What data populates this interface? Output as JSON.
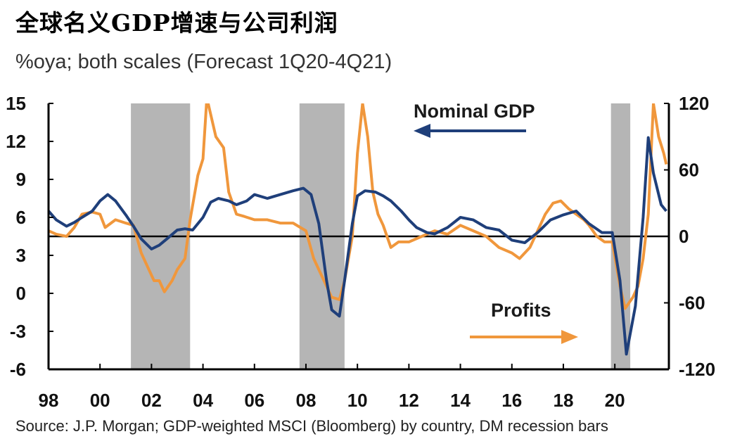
{
  "title": "全球名义GDP增速与公司利润",
  "subtitle": "%oya; both scales (Forecast 1Q20-4Q21)",
  "source": "Source: J.P. Morgan; GDP-weighted MSCI (Bloomberg) by country, DM recession bars",
  "colors": {
    "gdp": "#1f3f7a",
    "profits": "#f0973c",
    "recession": "#b5b5b5",
    "axis": "#000000"
  },
  "chart_data": {
    "type": "line",
    "x_range": [
      1998.0,
      2022.1
    ],
    "x_ticks": [
      {
        "value": 1998,
        "label": "98"
      },
      {
        "value": 2000,
        "label": "00"
      },
      {
        "value": 2002,
        "label": "02"
      },
      {
        "value": 2004,
        "label": "04"
      },
      {
        "value": 2006,
        "label": "06"
      },
      {
        "value": 2008,
        "label": "08"
      },
      {
        "value": 2010,
        "label": "10"
      },
      {
        "value": 2012,
        "label": "12"
      },
      {
        "value": 2014,
        "label": "14"
      },
      {
        "value": 2016,
        "label": "16"
      },
      {
        "value": 2018,
        "label": "18"
      },
      {
        "value": 2020,
        "label": "20"
      }
    ],
    "left_axis": {
      "name": "Nominal GDP",
      "range": [
        -6,
        15
      ],
      "ticks": [
        {
          "value": 15,
          "label": "15"
        },
        {
          "value": 12,
          "label": "12"
        },
        {
          "value": 9,
          "label": "9"
        },
        {
          "value": 6,
          "label": "6"
        },
        {
          "value": 3,
          "label": "3"
        },
        {
          "value": 0,
          "label": "0"
        },
        {
          "value": -3,
          "label": "-3"
        },
        {
          "value": -6,
          "label": "-6"
        }
      ]
    },
    "right_axis": {
      "name": "Profits",
      "range": [
        -120,
        120
      ],
      "ticks": [
        {
          "value": 120,
          "label": "120"
        },
        {
          "value": 60,
          "label": "60"
        },
        {
          "value": 0,
          "label": "0"
        },
        {
          "value": -60,
          "label": "-60"
        },
        {
          "value": -120,
          "label": "-120"
        }
      ]
    },
    "zero_line": {
      "right_value": 0
    },
    "recession_bars": [
      [
        2001.2,
        2003.5
      ],
      [
        2007.75,
        2009.5
      ],
      [
        2019.85,
        2020.6
      ]
    ],
    "annotations": [
      {
        "text": "Nominal GDP",
        "arrow": "left",
        "series": "gdp"
      },
      {
        "text": "Profits",
        "arrow": "right",
        "series": "profits"
      }
    ],
    "series": [
      {
        "name": "Nominal GDP",
        "axis": "left",
        "x": [
          1998.0,
          1998.3,
          1998.7,
          1999.0,
          1999.3,
          1999.7,
          2000.0,
          2000.3,
          2000.6,
          2001.0,
          2001.3,
          2001.6,
          2002.0,
          2002.3,
          2002.6,
          2003.0,
          2003.3,
          2003.6,
          2004.0,
          2004.3,
          2004.6,
          2005.0,
          2005.3,
          2005.7,
          2006.0,
          2006.5,
          2007.0,
          2007.5,
          2007.9,
          2008.2,
          2008.5,
          2008.8,
          2009.0,
          2009.3,
          2009.5,
          2009.8,
          2010.0,
          2010.3,
          2010.7,
          2011.0,
          2011.3,
          2011.7,
          2012.0,
          2012.3,
          2012.7,
          2013.0,
          2013.5,
          2014.0,
          2014.5,
          2015.0,
          2015.5,
          2016.0,
          2016.5,
          2017.0,
          2017.5,
          2018.0,
          2018.5,
          2019.0,
          2019.5,
          2019.9,
          2020.2,
          2020.45,
          2020.8,
          2021.1,
          2021.3,
          2021.5,
          2021.8,
          2022.0
        ],
        "values": [
          6.5,
          5.8,
          5.3,
          5.6,
          6.0,
          6.5,
          7.3,
          7.8,
          7.3,
          6.2,
          5.3,
          4.3,
          3.5,
          3.8,
          4.3,
          5.0,
          5.1,
          5.0,
          6.0,
          7.2,
          7.5,
          7.3,
          7.0,
          7.3,
          7.8,
          7.5,
          7.8,
          8.1,
          8.3,
          7.8,
          5.5,
          1.0,
          -1.3,
          -1.8,
          1.0,
          5.5,
          7.7,
          8.1,
          8.0,
          7.7,
          7.3,
          6.5,
          5.8,
          5.2,
          4.8,
          4.7,
          5.2,
          6.0,
          5.8,
          5.2,
          5.0,
          4.2,
          4.0,
          4.8,
          5.8,
          6.2,
          6.5,
          5.5,
          4.8,
          4.8,
          1.0,
          -4.8,
          -1.0,
          6.0,
          12.3,
          9.5,
          7.0,
          6.5
        ]
      },
      {
        "name": "Profits",
        "axis": "right",
        "x": [
          1998.0,
          1998.3,
          1998.7,
          1999.0,
          1999.3,
          1999.7,
          2000.0,
          2000.2,
          2000.6,
          2001.0,
          2001.3,
          2001.6,
          2001.9,
          2002.1,
          2002.3,
          2002.5,
          2002.8,
          2003.0,
          2003.3,
          2003.5,
          2003.8,
          2004.0,
          2004.15,
          2004.3,
          2004.5,
          2004.8,
          2005.0,
          2005.3,
          2005.6,
          2006.0,
          2006.5,
          2007.0,
          2007.5,
          2008.0,
          2008.3,
          2008.7,
          2009.0,
          2009.3,
          2009.5,
          2009.8,
          2010.0,
          2010.2,
          2010.4,
          2010.6,
          2010.8,
          2011.0,
          2011.3,
          2011.6,
          2012.0,
          2012.5,
          2013.0,
          2013.5,
          2014.0,
          2014.5,
          2015.0,
          2015.5,
          2016.0,
          2016.3,
          2016.7,
          2017.0,
          2017.3,
          2017.6,
          2017.9,
          2018.2,
          2018.5,
          2018.8,
          2019.0,
          2019.3,
          2019.6,
          2019.9,
          2020.2,
          2020.4,
          2020.7,
          2020.9,
          2021.1,
          2021.3,
          2021.5,
          2021.7,
          2021.9,
          2022.0
        ],
        "values": [
          5,
          2,
          0,
          8,
          20,
          22,
          20,
          8,
          15,
          12,
          10,
          -15,
          -30,
          -40,
          -40,
          -50,
          -40,
          -30,
          -20,
          15,
          55,
          70,
          125,
          110,
          90,
          80,
          40,
          20,
          18,
          15,
          15,
          12,
          12,
          5,
          -20,
          -40,
          -55,
          -57,
          -40,
          0,
          75,
          120,
          90,
          40,
          20,
          10,
          -10,
          -5,
          -5,
          0,
          5,
          2,
          10,
          5,
          0,
          -10,
          -15,
          -20,
          -10,
          5,
          20,
          30,
          32,
          25,
          20,
          15,
          10,
          0,
          -5,
          -5,
          -45,
          -65,
          -55,
          -45,
          -20,
          20,
          120,
          90,
          75,
          65
        ]
      }
    ]
  }
}
